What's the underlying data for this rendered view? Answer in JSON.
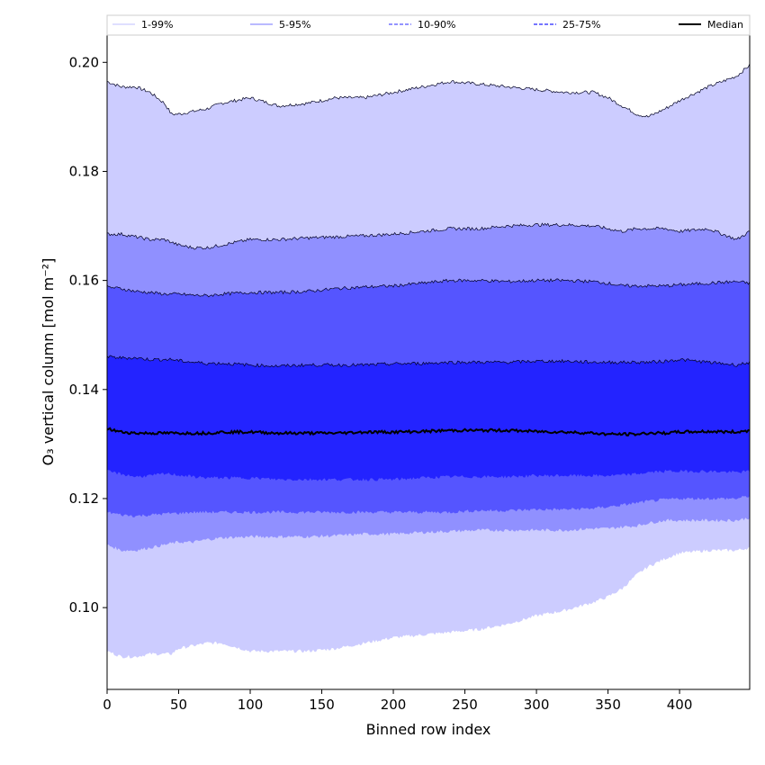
{
  "chart_data": {
    "type": "area",
    "xlabel": "Binned row index",
    "ylabel": "O₃ vertical column [mol m⁻²]",
    "xlim": [
      0,
      449
    ],
    "ylim": [
      0.085,
      0.205
    ],
    "xticks": [
      0,
      50,
      100,
      150,
      200,
      250,
      300,
      350,
      400
    ],
    "yticks": [
      0.1,
      0.12,
      0.14,
      0.16,
      0.18,
      0.2
    ],
    "xtick_labels": [
      "0",
      "50",
      "100",
      "150",
      "200",
      "250",
      "300",
      "350",
      "400"
    ],
    "ytick_labels": [
      "0.10",
      "0.12",
      "0.14",
      "0.16",
      "0.18",
      "0.20"
    ],
    "legend_position": "top, above plot, 5 columns",
    "x": [
      0,
      10,
      20,
      30,
      40,
      45,
      50,
      60,
      70,
      80,
      100,
      120,
      140,
      160,
      180,
      200,
      220,
      240,
      260,
      280,
      300,
      320,
      340,
      350,
      360,
      370,
      378,
      390,
      400,
      420,
      440,
      449
    ],
    "bands": [
      {
        "name": "1-99%",
        "color": "#ccccff",
        "line_style": "solid",
        "upper": [
          0.1965,
          0.1955,
          0.1955,
          0.1945,
          0.1925,
          0.1905,
          0.1905,
          0.191,
          0.1915,
          0.1925,
          0.1935,
          0.192,
          0.1925,
          0.1935,
          0.1935,
          0.1945,
          0.1955,
          0.1965,
          0.196,
          0.1955,
          0.195,
          0.1945,
          0.1945,
          0.1935,
          0.192,
          0.1905,
          0.19,
          0.1915,
          0.193,
          0.1955,
          0.1975,
          0.1995
        ],
        "lower": [
          0.092,
          0.091,
          0.091,
          0.0915,
          0.0915,
          0.0915,
          0.0925,
          0.093,
          0.0935,
          0.0935,
          0.092,
          0.092,
          0.092,
          0.0925,
          0.0935,
          0.0945,
          0.095,
          0.0955,
          0.096,
          0.097,
          0.0985,
          0.0995,
          0.101,
          0.102,
          0.1035,
          0.106,
          0.1075,
          0.109,
          0.11,
          0.1105,
          0.1105,
          0.111
        ]
      },
      {
        "name": "5-95%",
        "color": "#9090ff",
        "line_style": "solid",
        "upper": [
          0.1685,
          0.1685,
          0.168,
          0.1675,
          0.1675,
          0.167,
          0.1665,
          0.166,
          0.166,
          0.1665,
          0.1675,
          0.1675,
          0.1678,
          0.168,
          0.1682,
          0.1685,
          0.169,
          0.1695,
          0.1695,
          0.17,
          0.1702,
          0.1702,
          0.17,
          0.1695,
          0.169,
          0.1695,
          0.1695,
          0.1695,
          0.169,
          0.1695,
          0.1675,
          0.169
        ],
        "lower": [
          0.1115,
          0.1105,
          0.1105,
          0.111,
          0.1115,
          0.1118,
          0.112,
          0.112,
          0.1125,
          0.1128,
          0.113,
          0.113,
          0.113,
          0.1132,
          0.1135,
          0.1135,
          0.1138,
          0.114,
          0.1142,
          0.1142,
          0.1142,
          0.1142,
          0.1145,
          0.1145,
          0.1148,
          0.115,
          0.1155,
          0.116,
          0.116,
          0.116,
          0.116,
          0.1165
        ]
      },
      {
        "name": "10-90%",
        "color": "#5555ff",
        "line_style": "dashed",
        "upper": [
          0.1588,
          0.1585,
          0.158,
          0.1578,
          0.1575,
          0.1575,
          0.1575,
          0.1573,
          0.1572,
          0.1575,
          0.1578,
          0.1578,
          0.158,
          0.1585,
          0.1588,
          0.159,
          0.1595,
          0.16,
          0.16,
          0.1598,
          0.16,
          0.16,
          0.1598,
          0.1595,
          0.159,
          0.159,
          0.159,
          0.159,
          0.1592,
          0.1595,
          0.1598,
          0.1595
        ],
        "lower": [
          0.1175,
          0.117,
          0.1168,
          0.117,
          0.1172,
          0.1173,
          0.1173,
          0.1175,
          0.1175,
          0.1175,
          0.1175,
          0.1175,
          0.1175,
          0.1175,
          0.1175,
          0.1175,
          0.1175,
          0.1175,
          0.1178,
          0.1178,
          0.118,
          0.118,
          0.1182,
          0.1185,
          0.1188,
          0.1192,
          0.1195,
          0.1198,
          0.12,
          0.12,
          0.12,
          0.1205
        ]
      },
      {
        "name": "25-75%",
        "color": "#2323ff",
        "line_style": "dashed",
        "upper": [
          0.146,
          0.1458,
          0.1458,
          0.1455,
          0.1455,
          0.1455,
          0.1453,
          0.145,
          0.1448,
          0.1448,
          0.1445,
          0.1443,
          0.1445,
          0.1445,
          0.1445,
          0.1447,
          0.1448,
          0.145,
          0.145,
          0.145,
          0.1452,
          0.1452,
          0.145,
          0.145,
          0.145,
          0.145,
          0.145,
          0.1452,
          0.1455,
          0.145,
          0.1445,
          0.145
        ],
        "lower": [
          0.125,
          0.1245,
          0.124,
          0.1242,
          0.1245,
          0.1245,
          0.1243,
          0.124,
          0.1238,
          0.1238,
          0.1238,
          0.1235,
          0.1235,
          0.1235,
          0.1235,
          0.1235,
          0.1238,
          0.124,
          0.124,
          0.124,
          0.1242,
          0.1242,
          0.1242,
          0.1242,
          0.1243,
          0.1245,
          0.1248,
          0.125,
          0.125,
          0.125,
          0.1248,
          0.125
        ]
      }
    ],
    "median": {
      "name": "Median",
      "color": "#000000",
      "line_style": "solid",
      "values": [
        0.1328,
        0.1322,
        0.132,
        0.132,
        0.132,
        0.132,
        0.132,
        0.132,
        0.132,
        0.1322,
        0.1322,
        0.132,
        0.132,
        0.132,
        0.1322,
        0.1322,
        0.1323,
        0.1325,
        0.1325,
        0.1325,
        0.1323,
        0.1322,
        0.132,
        0.1318,
        0.1318,
        0.1318,
        0.132,
        0.132,
        0.1322,
        0.1323,
        0.1322,
        0.1325
      ]
    }
  }
}
